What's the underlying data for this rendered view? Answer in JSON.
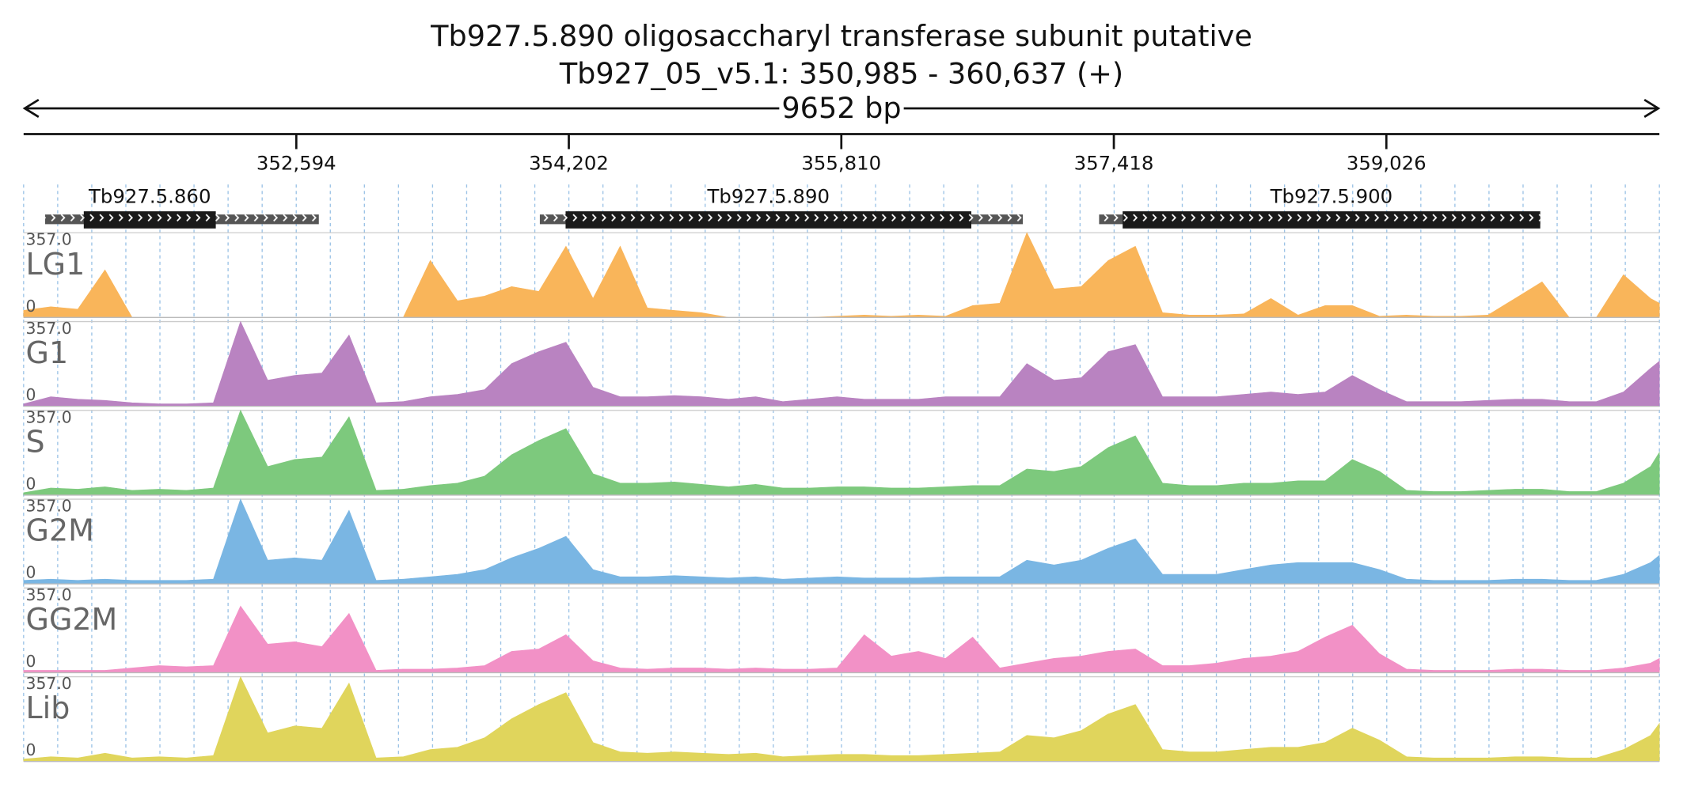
{
  "chart_data": {
    "type": "area",
    "title": "Tb927.5.890  oligosaccharyl transferase subunit  putative",
    "subtitle": "Tb927_05_v5.1: 350,985 - 360,637 (+)",
    "span_label": "9652 bp",
    "xlim": [
      350985,
      360637
    ],
    "xticks": [
      {
        "value": 352594,
        "label": "352,594"
      },
      {
        "value": 354202,
        "label": "354,202"
      },
      {
        "value": 355810,
        "label": "355,810"
      },
      {
        "value": 357418,
        "label": "357,418"
      },
      {
        "value": 359026,
        "label": "359,026"
      }
    ],
    "ylim": [
      0,
      357
    ],
    "yticks": [
      0,
      {
        "value": 357,
        "label": "357.0"
      }
    ],
    "grid": true,
    "genes": [
      {
        "name": "Tb927.5.860",
        "start": 351112,
        "end": 352727,
        "cds_start": 351340,
        "cds_end": 352119
      },
      {
        "name": "Tb927.5.890",
        "start": 354031,
        "end": 356881,
        "cds_start": 354183,
        "cds_end": 356577
      },
      {
        "name": "Tb927.5.900",
        "start": 357331,
        "end": 359934,
        "cds_start": 357470,
        "cds_end": 359934
      }
    ],
    "x": [
      350985,
      351145,
      351305,
      351465,
      351625,
      351785,
      351945,
      352105,
      352265,
      352425,
      352585,
      352745,
      352905,
      353065,
      353225,
      353385,
      353545,
      353705,
      353865,
      354025,
      354185,
      354345,
      354505,
      354665,
      354825,
      354985,
      355145,
      355305,
      355465,
      355625,
      355785,
      355945,
      356105,
      356265,
      356425,
      356585,
      356745,
      356905,
      357065,
      357225,
      357385,
      357545,
      357705,
      357865,
      358025,
      358185,
      358345,
      358505,
      358665,
      358825,
      358985,
      359145,
      359305,
      359465,
      359625,
      359785,
      359945,
      360105,
      360265,
      360425,
      360585,
      360637
    ],
    "series": [
      {
        "name": "LG1",
        "color": "#f9b55a",
        "values": [
          30,
          45,
          35,
          200,
          0,
          0,
          0,
          0,
          0,
          0,
          0,
          0,
          0,
          0,
          0,
          240,
          70,
          90,
          130,
          110,
          300,
          80,
          300,
          40,
          30,
          20,
          0,
          0,
          0,
          0,
          5,
          10,
          5,
          10,
          5,
          50,
          60,
          357,
          120,
          130,
          240,
          300,
          20,
          10,
          10,
          15,
          80,
          10,
          50,
          50,
          5,
          10,
          5,
          5,
          10,
          80,
          150,
          0,
          0,
          180,
          80,
          60
        ]
      },
      {
        "name": "G1",
        "color": "#b983c1",
        "values": [
          10,
          40,
          30,
          25,
          15,
          10,
          10,
          15,
          357,
          110,
          130,
          140,
          300,
          15,
          20,
          40,
          50,
          70,
          180,
          230,
          270,
          80,
          40,
          40,
          45,
          40,
          30,
          40,
          20,
          30,
          40,
          30,
          30,
          30,
          40,
          40,
          40,
          180,
          110,
          120,
          230,
          260,
          40,
          40,
          40,
          50,
          60,
          50,
          60,
          130,
          70,
          20,
          20,
          20,
          25,
          30,
          30,
          20,
          20,
          60,
          160,
          190
        ]
      },
      {
        "name": "S",
        "color": "#7dc97d",
        "values": [
          10,
          30,
          25,
          35,
          20,
          25,
          20,
          30,
          357,
          120,
          150,
          160,
          330,
          20,
          25,
          40,
          50,
          80,
          170,
          230,
          280,
          90,
          50,
          50,
          55,
          45,
          35,
          45,
          30,
          30,
          35,
          35,
          30,
          30,
          35,
          40,
          40,
          110,
          100,
          120,
          200,
          250,
          50,
          40,
          40,
          50,
          50,
          60,
          60,
          150,
          100,
          20,
          15,
          15,
          20,
          25,
          25,
          15,
          15,
          50,
          120,
          180
        ]
      },
      {
        "name": "G2M",
        "color": "#7ab6e3",
        "values": [
          15,
          20,
          15,
          20,
          15,
          15,
          15,
          20,
          357,
          100,
          110,
          100,
          310,
          15,
          20,
          30,
          40,
          60,
          110,
          150,
          200,
          60,
          30,
          30,
          35,
          30,
          25,
          30,
          20,
          25,
          30,
          25,
          25,
          25,
          30,
          30,
          30,
          100,
          80,
          100,
          150,
          190,
          40,
          40,
          40,
          60,
          80,
          90,
          90,
          90,
          60,
          20,
          15,
          15,
          15,
          20,
          20,
          15,
          15,
          40,
          90,
          120
        ]
      },
      {
        "name": "GG2M",
        "color": "#f291c6",
        "values": [
          10,
          10,
          10,
          10,
          20,
          30,
          25,
          30,
          280,
          120,
          130,
          110,
          250,
          10,
          15,
          15,
          20,
          30,
          90,
          100,
          160,
          50,
          20,
          15,
          20,
          20,
          15,
          20,
          15,
          15,
          20,
          160,
          70,
          90,
          60,
          150,
          20,
          40,
          60,
          70,
          90,
          100,
          30,
          30,
          40,
          60,
          70,
          90,
          150,
          200,
          80,
          15,
          10,
          10,
          10,
          15,
          15,
          10,
          10,
          20,
          40,
          60
        ]
      },
      {
        "name": "Lib",
        "color": "#e0d55c",
        "values": [
          10,
          20,
          15,
          35,
          15,
          20,
          15,
          25,
          357,
          120,
          150,
          140,
          330,
          15,
          20,
          50,
          60,
          100,
          180,
          240,
          290,
          80,
          40,
          35,
          40,
          35,
          30,
          35,
          20,
          25,
          30,
          30,
          25,
          25,
          30,
          35,
          40,
          110,
          100,
          130,
          200,
          240,
          50,
          40,
          40,
          50,
          60,
          60,
          80,
          140,
          90,
          20,
          15,
          15,
          15,
          20,
          20,
          15,
          15,
          50,
          110,
          160
        ]
      }
    ]
  }
}
